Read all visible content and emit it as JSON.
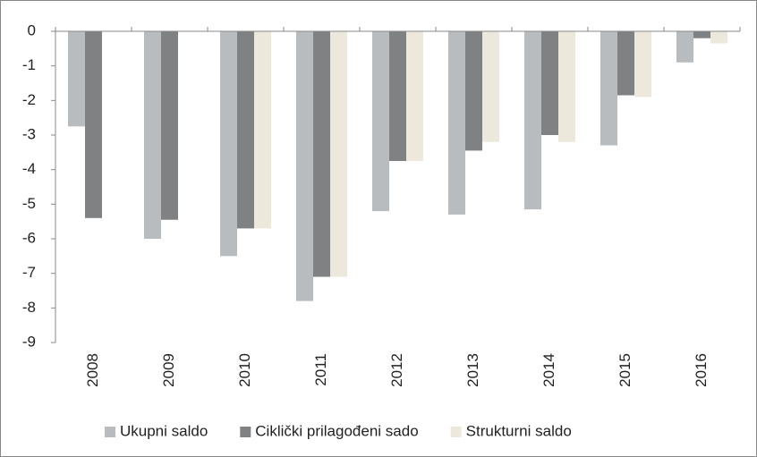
{
  "chart_data": {
    "type": "bar",
    "categories": [
      "2008",
      "2009",
      "2010",
      "2011",
      "2012",
      "2013",
      "2014",
      "2015",
      "2016"
    ],
    "series": [
      {
        "name": "Ukupni saldo",
        "color": "#b9bcbe",
        "values": [
          -2.75,
          -6.0,
          -6.5,
          -7.8,
          -5.2,
          -5.3,
          -5.15,
          -3.3,
          -0.9
        ]
      },
      {
        "name": "Ciklički prilagođeni sado",
        "color": "#7f8183",
        "values": [
          -5.4,
          -5.45,
          -5.7,
          -7.1,
          -3.75,
          -3.45,
          -3.0,
          -1.85,
          -0.2
        ]
      },
      {
        "name": "Strukturni saldo",
        "color": "#ece9dc",
        "values": [
          null,
          null,
          -5.7,
          -7.1,
          -3.75,
          -3.2,
          -3.2,
          -1.9,
          -0.35
        ]
      }
    ],
    "ylim": [
      -9,
      0
    ],
    "yticks": [
      0,
      -1,
      -2,
      -3,
      -4,
      -5,
      -6,
      -7,
      -8,
      -9
    ],
    "legend": "bottom"
  }
}
